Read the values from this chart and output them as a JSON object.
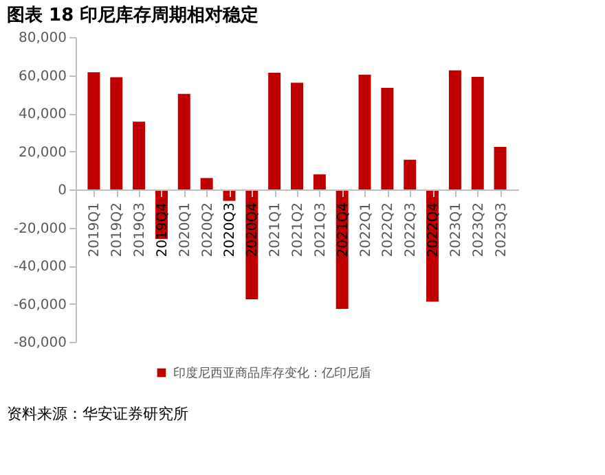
{
  "chart_data": {
    "type": "bar",
    "title": "图表 18 印尼库存周期相对稳定",
    "categories": [
      "2019Q1",
      "2019Q2",
      "2019Q3",
      "2019Q4",
      "2020Q1",
      "2020Q2",
      "2020Q3",
      "2020Q4",
      "2021Q1",
      "2021Q2",
      "2021Q3",
      "2021Q4",
      "2022Q1",
      "2022Q2",
      "2022Q3",
      "2022Q4",
      "2023Q1",
      "2023Q2",
      "2023Q3"
    ],
    "series": [
      {
        "name": "印度尼西亚商品库存变化：亿印尼盾",
        "color": "#c00000",
        "values": [
          61500,
          58900,
          35600,
          -26000,
          50200,
          6000,
          -6000,
          -57700,
          61300,
          56000,
          7900,
          -62700,
          60300,
          53300,
          15600,
          -58900,
          62500,
          59100,
          22300
        ]
      }
    ],
    "ylim": [
      -80000,
      80000
    ],
    "yticks": [
      {
        "value": -80000,
        "label": "-80,000"
      },
      {
        "value": -60000,
        "label": "-60,000"
      },
      {
        "value": -40000,
        "label": "-40,000"
      },
      {
        "value": -20000,
        "label": "-20,000"
      },
      0,
      {
        "value": 20000,
        "label": "20,000"
      },
      {
        "value": 40000,
        "label": "40,000"
      },
      {
        "value": 60000,
        "label": "60,000"
      },
      {
        "value": 80000,
        "label": "80,000"
      }
    ],
    "grid": false,
    "legend": "bottom",
    "annotations": [
      "资料来源：华安证券研究所"
    ]
  }
}
